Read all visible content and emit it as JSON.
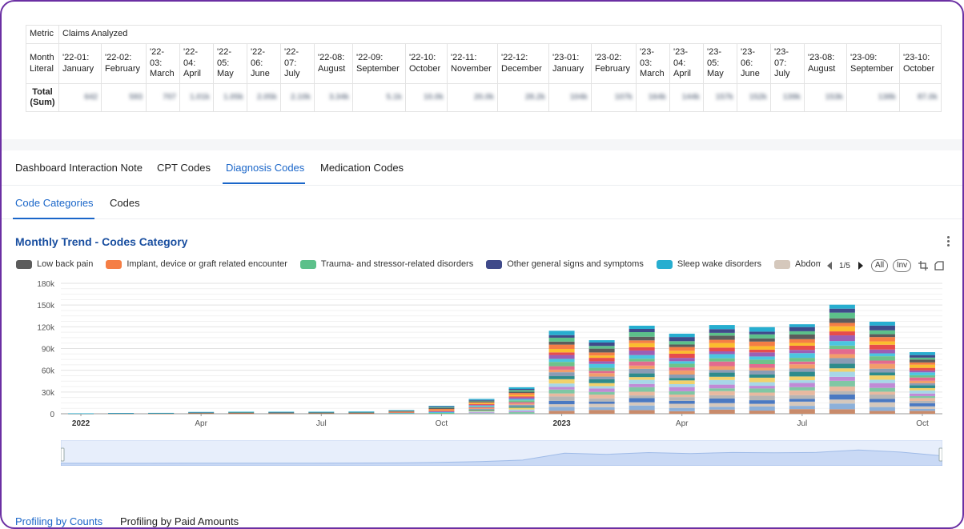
{
  "summary": {
    "metric_label": "Metric",
    "metric_value": "Claims Analyzed",
    "month_label": "Month Literal",
    "total_label": "Total (Sum)",
    "months": [
      {
        "l1": "'22-01:",
        "l2": "January"
      },
      {
        "l1": "'22-02:",
        "l2": "February"
      },
      {
        "l1": "'22-",
        "l2": "03:",
        "l3": "March"
      },
      {
        "l1": "'22-",
        "l2": "04:",
        "l3": "April"
      },
      {
        "l1": "'22-",
        "l2": "05:",
        "l3": "May"
      },
      {
        "l1": "'22-",
        "l2": "06:",
        "l3": "June"
      },
      {
        "l1": "'22-",
        "l2": "07:",
        "l3": "July"
      },
      {
        "l1": "'22-08:",
        "l2": "August"
      },
      {
        "l1": "'22-09:",
        "l2": "September"
      },
      {
        "l1": "'22-10:",
        "l2": "October"
      },
      {
        "l1": "'22-11:",
        "l2": "November"
      },
      {
        "l1": "'22-12:",
        "l2": "December"
      },
      {
        "l1": "'23-01:",
        "l2": "January"
      },
      {
        "l1": "'23-02:",
        "l2": "February"
      },
      {
        "l1": "'23-",
        "l2": "03:",
        "l3": "March"
      },
      {
        "l1": "'23-",
        "l2": "04:",
        "l3": "April"
      },
      {
        "l1": "'23-",
        "l2": "05:",
        "l3": "May"
      },
      {
        "l1": "'23-",
        "l2": "06:",
        "l3": "June"
      },
      {
        "l1": "'23-",
        "l2": "07:",
        "l3": "July"
      },
      {
        "l1": "'23-08:",
        "l2": "August"
      },
      {
        "l1": "'23-09:",
        "l2": "September"
      },
      {
        "l1": "'23-10:",
        "l2": "October"
      }
    ],
    "totals": [
      "642",
      "593",
      "707",
      "1.01k",
      "1.05k",
      "2.05k",
      "2.10k",
      "3.34k",
      "5.1k",
      "10.0k",
      "20.0k",
      "28.2k",
      "104k",
      "107k",
      "164k",
      "144k",
      "157k",
      "152k",
      "139k",
      "153k",
      "138k",
      "87.0k"
    ]
  },
  "tabs": {
    "main": [
      "Dashboard Interaction Note",
      "CPT Codes",
      "Diagnosis Codes",
      "Medication Codes"
    ],
    "sub": [
      "Code Categories",
      "Codes"
    ],
    "profiling": [
      "Profiling by Counts",
      "Profiling by Paid Amounts"
    ]
  },
  "chart": {
    "title": "Monthly Trend - Codes Category",
    "page": "1/5",
    "all_label": "All",
    "inv_label": "Inv"
  },
  "chart_data": {
    "type": "bar",
    "stacked": true,
    "title": "Monthly Trend - Codes Category",
    "xlabel": "",
    "ylabel": "",
    "ylim": [
      0,
      180000
    ],
    "y_ticks": [
      "0",
      "30k",
      "60k",
      "90k",
      "120k",
      "150k",
      "180k"
    ],
    "x_ticks": [
      {
        "i": 0,
        "label": "2022",
        "bold": true
      },
      {
        "i": 3,
        "label": "Apr"
      },
      {
        "i": 6,
        "label": "Jul"
      },
      {
        "i": 9,
        "label": "Oct"
      },
      {
        "i": 12,
        "label": "2023",
        "bold": true
      },
      {
        "i": 15,
        "label": "Apr"
      },
      {
        "i": 18,
        "label": "Jul"
      },
      {
        "i": 21,
        "label": "Oct"
      }
    ],
    "categories": [
      "2022-01",
      "2022-02",
      "2022-03",
      "2022-04",
      "2022-05",
      "2022-06",
      "2022-07",
      "2022-08",
      "2022-09",
      "2022-10",
      "2022-11",
      "2022-12",
      "2023-01",
      "2023-02",
      "2023-03",
      "2023-04",
      "2023-05",
      "2023-06",
      "2023-07",
      "2023-08",
      "2023-09",
      "2023-10"
    ],
    "totals": [
      600,
      1000,
      1200,
      2500,
      2800,
      2800,
      2800,
      3200,
      5000,
      11000,
      20500,
      36500,
      114500,
      101500,
      121500,
      110500,
      122500,
      119500,
      123500,
      150500,
      127000,
      85000
    ],
    "legend": [
      {
        "name": "Low back pain",
        "color": "#5c5c5c"
      },
      {
        "name": "Implant, device or graft related encounter",
        "color": "#f57e45"
      },
      {
        "name": "Trauma- and stressor-related disorders",
        "color": "#5cc08a"
      },
      {
        "name": "Other general signs and symptoms",
        "color": "#3f4a8a"
      },
      {
        "name": "Sleep wake disorders",
        "color": "#27aed0"
      },
      {
        "name": "Abdominal pain and other digestive/abdomen signs and symptoms",
        "color": "#d5c8bc"
      }
    ],
    "palette": [
      "#27aed0",
      "#3f4a8a",
      "#5cc08a",
      "#5c5c5c",
      "#f57e45",
      "#fbbd2e",
      "#e74c4c",
      "#9c5fb5",
      "#4bc6e0",
      "#6ec38a",
      "#e26b8f",
      "#f29d6b",
      "#8a9cb5",
      "#2e8b8b",
      "#f2d16b",
      "#a7d7e8",
      "#c08ad6",
      "#7fc7a4",
      "#e8b9a0",
      "#b5b5b5",
      "#4a79c2",
      "#d5c8bc",
      "#8cb0d9",
      "#c98b6b"
    ]
  }
}
